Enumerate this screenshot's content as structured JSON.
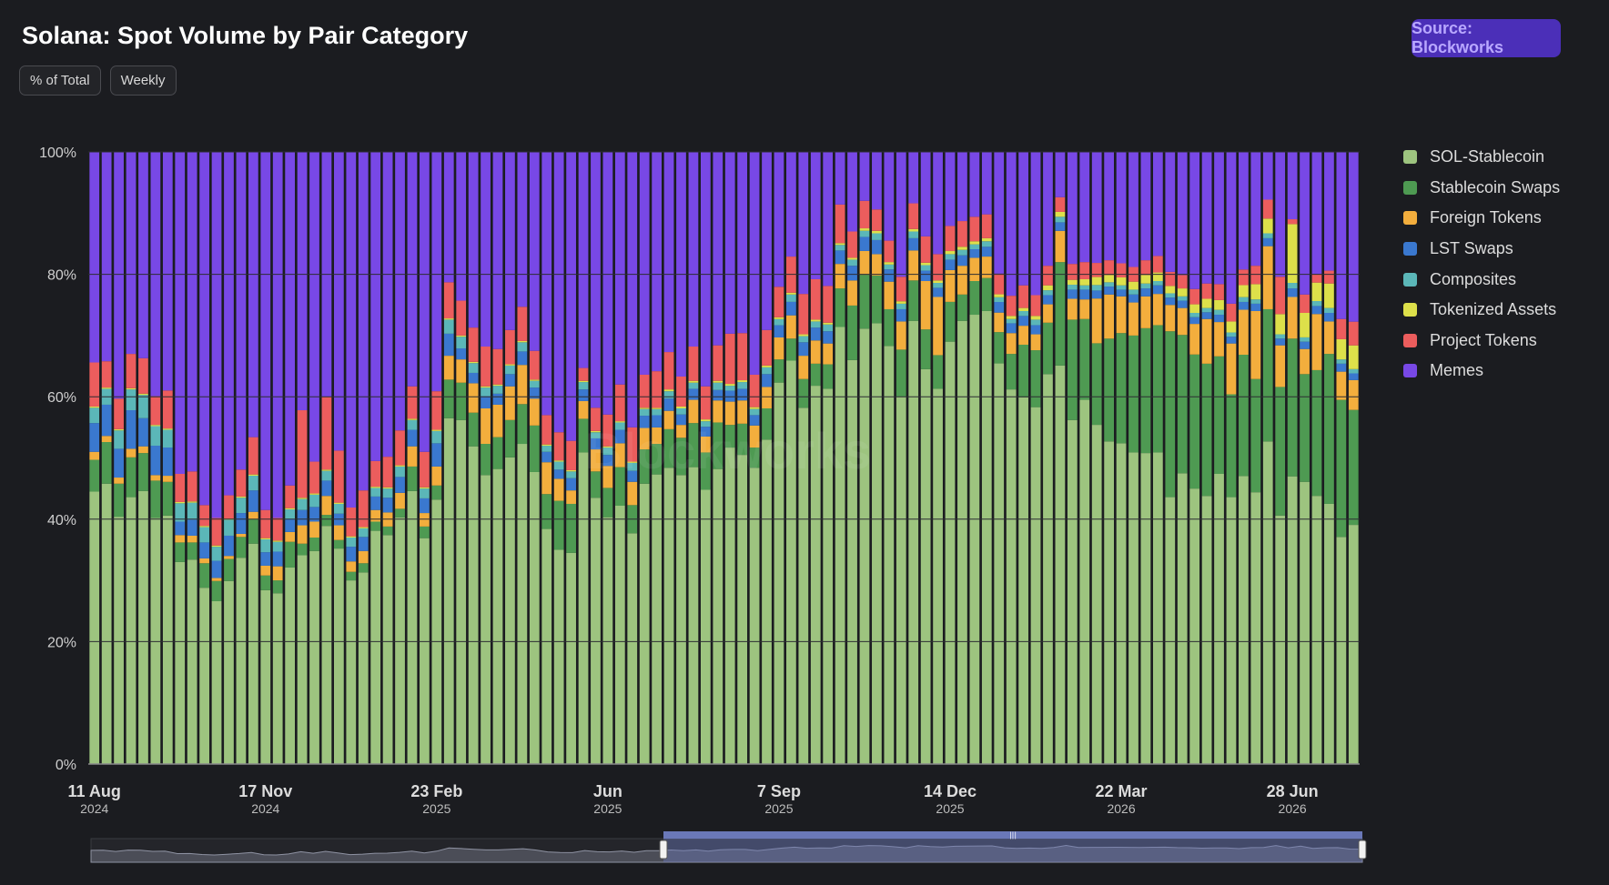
{
  "title": "Solana: Spot Volume by Pair Category",
  "chips": [
    "% of Total",
    "Weekly"
  ],
  "source_button": "Source: Blockworks",
  "watermark": "Blockworks",
  "colors": {
    "sol_stablecoin": "#9dc47f",
    "stablecoin_swaps": "#4e9a52",
    "foreign_tokens": "#f3ae3d",
    "lst_swaps": "#3a78cf",
    "composites": "#5bb7b8",
    "tokenized_assets": "#dde04a",
    "project_tokens": "#ec5d5d",
    "memes": "#7848e6",
    "background": "#1b1c20"
  },
  "chart_data": {
    "type": "bar",
    "stacked": true,
    "percent": true,
    "ylim": [
      0,
      100
    ],
    "yticks": [
      "0%",
      "20%",
      "40%",
      "60%",
      "80%",
      "100%"
    ],
    "xticks": [
      {
        "label": "11 Aug",
        "year": "2024",
        "index": 0
      },
      {
        "label": "17 Nov",
        "year": "2024",
        "index": 14
      },
      {
        "label": "23 Feb",
        "year": "2025",
        "index": 28
      },
      {
        "label": "Jun",
        "year": "2025",
        "index": 42
      },
      {
        "label": "7 Sep",
        "year": "2025",
        "index": 56
      },
      {
        "label": "14 Dec",
        "year": "2025",
        "index": 70
      },
      {
        "label": "22 Mar",
        "year": "2026",
        "index": 84
      },
      {
        "label": "28 Jun",
        "year": "2026",
        "index": 98
      }
    ],
    "legend_position": "right",
    "series": [
      {
        "name": "SOL-Stablecoin",
        "key": "sol_stablecoin",
        "values": [
          44.5,
          45.8,
          40.4,
          43.6,
          44.6,
          40.2,
          40.5,
          33.0,
          33.4,
          28.8,
          26.6,
          29.9,
          33.7,
          36.0,
          28.4,
          27.9,
          32.1,
          34.1,
          34.8,
          38.9,
          35.2,
          30.0,
          31.3,
          38.1,
          37.4,
          40.3,
          44.6,
          36.9,
          43.2,
          56.5,
          56.2,
          51.9,
          47.2,
          48.2,
          50.1,
          52.3,
          47.7,
          38.4,
          35.0,
          34.5,
          50.9,
          43.5,
          40.4,
          42.2,
          37.7,
          45.8,
          47.4,
          48.4,
          47.2,
          48.5,
          44.8,
          48.2,
          51.7,
          50.5,
          48.4,
          53.0,
          62.5,
          65.9,
          58.2,
          61.8,
          61.3,
          71.4,
          66.0,
          71.2,
          72.0,
          68.3,
          60.0,
          72.4,
          64.5,
          61.3,
          69.0,
          72.4,
          73.4,
          74.0,
          67.8,
          61.2,
          59.9,
          58.3,
          63.7,
          65.1,
          56.2,
          59.5,
          55.3,
          52.7,
          52.4,
          50.9,
          50.8,
          50.9,
          43.6,
          47.5,
          45.0,
          43.8,
          47.4,
          43.6,
          48.0,
          44.4,
          52.7,
          40.6,
          47.0,
          46.1,
          43.5,
          42.5,
          37.1,
          39.3
        ]
      },
      {
        "name": "Stablecoin Swaps",
        "key": "stablecoin_swaps",
        "values": [
          5.2,
          6.8,
          5.4,
          6.5,
          6.2,
          6.1,
          5.5,
          3.2,
          2.8,
          4.0,
          3.3,
          3.6,
          3.4,
          4.0,
          2.4,
          2.1,
          4.2,
          1.9,
          2.2,
          1.8,
          1.4,
          1.4,
          1.5,
          1.5,
          1.4,
          1.4,
          4.0,
          1.9,
          2.3,
          6.3,
          6.1,
          5.5,
          5.1,
          5.2,
          6.1,
          6.5,
          7.6,
          5.7,
          8.0,
          8.0,
          5.5,
          4.3,
          4.8,
          6.3,
          4.6,
          5.6,
          5.0,
          6.3,
          6.1,
          7.2,
          6.1,
          7.6,
          3.7,
          5.1,
          3.3,
          5.1,
          3.8,
          3.6,
          4.7,
          3.6,
          4.0,
          6.3,
          8.9,
          8.8,
          7.8,
          6.0,
          7.7,
          6.6,
          6.5,
          5.5,
          6.5,
          4.3,
          5.5,
          5.4,
          5.3,
          5.8,
          8.6,
          9.3,
          8.4,
          16.9,
          16.4,
          13.2,
          13.3,
          16.8,
          18.0,
          19.1,
          20.4,
          20.8,
          27.1,
          22.6,
          21.9,
          21.6,
          19.2,
          16.8,
          20.2,
          18.5,
          21.6,
          21.0,
          22.5,
          17.6,
          20.4,
          24.5,
          22.4,
          18.9
        ]
      },
      {
        "name": "Foreign Tokens",
        "key": "foreign_tokens",
        "values": [
          1.3,
          1.0,
          1.0,
          1.4,
          1.1,
          0.9,
          1.0,
          1.2,
          1.1,
          0.8,
          0.5,
          0.5,
          0.5,
          1.2,
          1.6,
          2.3,
          1.6,
          3.0,
          2.6,
          3.1,
          2.4,
          1.7,
          2.0,
          1.9,
          2.3,
          2.6,
          3.3,
          2.2,
          3.1,
          3.9,
          3.8,
          4.8,
          5.8,
          5.3,
          5.5,
          6.4,
          4.4,
          5.2,
          3.6,
          2.2,
          2.9,
          3.6,
          3.6,
          3.9,
          3.8,
          3.5,
          2.7,
          3.0,
          2.1,
          3.8,
          2.6,
          3.6,
          3.8,
          3.8,
          3.6,
          3.5,
          3.6,
          3.8,
          3.8,
          3.8,
          3.4,
          4.0,
          4.1,
          3.9,
          3.5,
          4.5,
          4.6,
          4.9,
          7.9,
          9.5,
          5.2,
          4.7,
          3.8,
          3.5,
          3.3,
          3.4,
          3.1,
          2.6,
          3.0,
          5.1,
          3.4,
          3.2,
          7.3,
          7.2,
          6.0,
          5.4,
          5.2,
          5.1,
          4.3,
          4.4,
          5.0,
          7.3,
          5.6,
          8.3,
          7.5,
          11.1,
          10.3,
          6.8,
          6.8,
          4.1,
          9.1,
          5.3,
          4.6,
          4.9
        ]
      },
      {
        "name": "LST Swaps",
        "key": "lst_swaps",
        "values": [
          4.7,
          5.1,
          4.7,
          6.3,
          4.6,
          4.8,
          4.6,
          2.2,
          2.6,
          2.6,
          2.8,
          3.3,
          3.4,
          3.5,
          2.2,
          2.4,
          2.1,
          2.5,
          2.4,
          2.5,
          1.9,
          2.4,
          2.3,
          2.2,
          2.4,
          2.6,
          2.7,
          2.4,
          3.8,
          3.6,
          1.8,
          1.7,
          2.0,
          1.8,
          2.0,
          2.2,
          1.8,
          1.7,
          1.5,
          2.0,
          1.9,
          1.8,
          1.8,
          2.2,
          1.8,
          2.0,
          2.0,
          2.0,
          1.7,
          1.8,
          1.6,
          1.7,
          1.8,
          1.9,
          1.7,
          2.1,
          2.0,
          2.2,
          2.2,
          2.1,
          2.0,
          2.2,
          2.4,
          2.3,
          2.3,
          2.0,
          2.0,
          2.0,
          1.7,
          1.5,
          1.7,
          1.7,
          1.4,
          1.6,
          1.8,
          1.6,
          1.6,
          1.5,
          1.5,
          1.4,
          1.5,
          1.6,
          1.3,
          1.3,
          1.1,
          1.3,
          1.3,
          1.4,
          1.2,
          1.2,
          1.1,
          1.1,
          1.2,
          1.1,
          1.3,
          1.2,
          1.3,
          1.1,
          1.4,
          1.2,
          1.3,
          1.4,
          1.3,
          1.1
        ]
      },
      {
        "name": "Composites",
        "key": "composites",
        "values": [
          2.5,
          2.6,
          3.0,
          3.4,
          3.8,
          3.2,
          2.9,
          3.0,
          2.8,
          2.5,
          2.3,
          2.6,
          2.5,
          2.4,
          2.1,
          1.6,
          1.6,
          1.8,
          2.0,
          1.6,
          1.6,
          1.5,
          1.4,
          1.4,
          1.5,
          1.7,
          1.6,
          1.6,
          2.0,
          2.3,
          1.9,
          1.6,
          1.4,
          1.3,
          1.4,
          1.5,
          1.1,
          1.0,
          1.3,
          1.1,
          1.2,
          1.0,
          1.2,
          1.2,
          1.3,
          1.1,
          1.0,
          1.2,
          1.0,
          1.0,
          0.9,
          1.2,
          0.8,
          1.1,
          1.0,
          1.1,
          1.0,
          1.2,
          1.0,
          1.0,
          1.1,
          0.9,
          1.0,
          1.0,
          1.1,
          0.8,
          0.9,
          1.1,
          0.9,
          0.8,
          0.9,
          0.9,
          0.8,
          0.9,
          0.8,
          0.7,
          0.8,
          0.9,
          0.8,
          0.9,
          0.8,
          0.7,
          0.9,
          0.7,
          0.7,
          0.8,
          0.8,
          0.7,
          0.7,
          0.7,
          0.7,
          0.7,
          0.8,
          0.7,
          0.8,
          0.7,
          0.8,
          0.7,
          0.9,
          0.7,
          0.8,
          0.8,
          0.7,
          0.7
        ]
      },
      {
        "name": "Tokenized Assets",
        "key": "tokenized_assets",
        "values": [
          0.2,
          0.2,
          0.2,
          0.2,
          0.2,
          0.2,
          0.2,
          0.2,
          0.2,
          0.2,
          0.2,
          0.2,
          0.2,
          0.2,
          0.2,
          0.2,
          0.2,
          0.2,
          0.2,
          0.2,
          0.2,
          0.2,
          0.2,
          0.2,
          0.2,
          0.2,
          0.2,
          0.2,
          0.2,
          0.2,
          0.2,
          0.2,
          0.2,
          0.2,
          0.2,
          0.2,
          0.2,
          0.2,
          0.2,
          0.2,
          0.2,
          0.2,
          0.2,
          0.2,
          0.2,
          0.2,
          0.2,
          0.3,
          0.3,
          0.3,
          0.3,
          0.3,
          0.3,
          0.3,
          0.3,
          0.3,
          0.3,
          0.3,
          0.3,
          0.3,
          0.3,
          0.3,
          0.3,
          0.4,
          0.4,
          0.4,
          0.4,
          0.4,
          0.4,
          0.4,
          0.5,
          0.5,
          0.5,
          0.5,
          0.5,
          0.5,
          0.5,
          0.6,
          0.8,
          0.8,
          0.8,
          1.0,
          1.3,
          1.2,
          1.3,
          1.3,
          1.4,
          1.4,
          1.2,
          1.3,
          1.4,
          1.5,
          1.6,
          1.8,
          2.0,
          2.5,
          2.4,
          3.3,
          9.6,
          4.0,
          3.0,
          4.0,
          3.3,
          3.9
        ]
      },
      {
        "name": "Project Tokens",
        "key": "project_tokens",
        "values": [
          7.2,
          4.3,
          5.0,
          5.6,
          5.8,
          4.7,
          6.2,
          4.6,
          4.9,
          3.4,
          4.5,
          3.8,
          4.4,
          6.1,
          4.6,
          3.7,
          3.7,
          14.3,
          5.2,
          11.9,
          8.5,
          4.7,
          6.0,
          4.2,
          5.0,
          5.7,
          5.3,
          5.8,
          6.3,
          5.9,
          5.7,
          5.6,
          6.5,
          5.8,
          5.6,
          5.6,
          4.7,
          4.8,
          4.6,
          4.8,
          2.1,
          3.8,
          5.2,
          6.0,
          5.6,
          5.4,
          6.0,
          6.1,
          4.9,
          5.6,
          5.4,
          5.8,
          8.2,
          7.7,
          5.3,
          5.8,
          5.0,
          5.9,
          6.6,
          6.6,
          6.0,
          6.3,
          4.3,
          4.5,
          3.5,
          3.5,
          4.0,
          4.2,
          4.3,
          4.3,
          4.1,
          4.2,
          4.0,
          3.9,
          3.5,
          3.3,
          3.7,
          3.4,
          3.2,
          2.4,
          2.6,
          2.8,
          2.3,
          2.4,
          2.3,
          2.4,
          2.4,
          2.7,
          2.3,
          2.2,
          2.5,
          2.5,
          2.6,
          2.9,
          2.6,
          3.0,
          3.1,
          6.1,
          0.8,
          3.0,
          1.4,
          2.1,
          3.3,
          3.9
        ]
      },
      {
        "name": "Memes",
        "key": "memes",
        "values": [
          34.4,
          34.2,
          40.3,
          33.0,
          33.7,
          39.9,
          38.9,
          52.6,
          52.2,
          57.7,
          59.8,
          56.1,
          51.9,
          46.6,
          58.5,
          59.8,
          54.5,
          42.2,
          50.6,
          40.0,
          48.8,
          58.1,
          55.3,
          50.5,
          49.8,
          45.5,
          38.3,
          49.0,
          39.1,
          21.3,
          24.3,
          28.7,
          31.8,
          32.2,
          29.1,
          25.3,
          32.5,
          43.0,
          45.8,
          47.2,
          35.3,
          41.8,
          43.0,
          38.0,
          45.0,
          36.4,
          35.9,
          32.7,
          36.7,
          31.8,
          38.3,
          31.6,
          29.7,
          29.6,
          36.4,
          29.1,
          22.1,
          17.1,
          23.2,
          20.8,
          21.9,
          8.6,
          13.0,
          8.0,
          9.4,
          14.5,
          20.4,
          8.4,
          13.8,
          16.7,
          12.1,
          11.3,
          10.6,
          10.2,
          20.6,
          23.5,
          21.8,
          23.4,
          18.6,
          7.4,
          18.3,
          18.0,
          18.1,
          17.7,
          18.2,
          18.8,
          17.7,
          17.0,
          19.6,
          20.1,
          22.4,
          21.5,
          21.6,
          24.8,
          19.6,
          18.6,
          7.8,
          20.4,
          11.0,
          23.3,
          19.8,
          19.4,
          27.3,
          27.9
        ]
      }
    ]
  }
}
